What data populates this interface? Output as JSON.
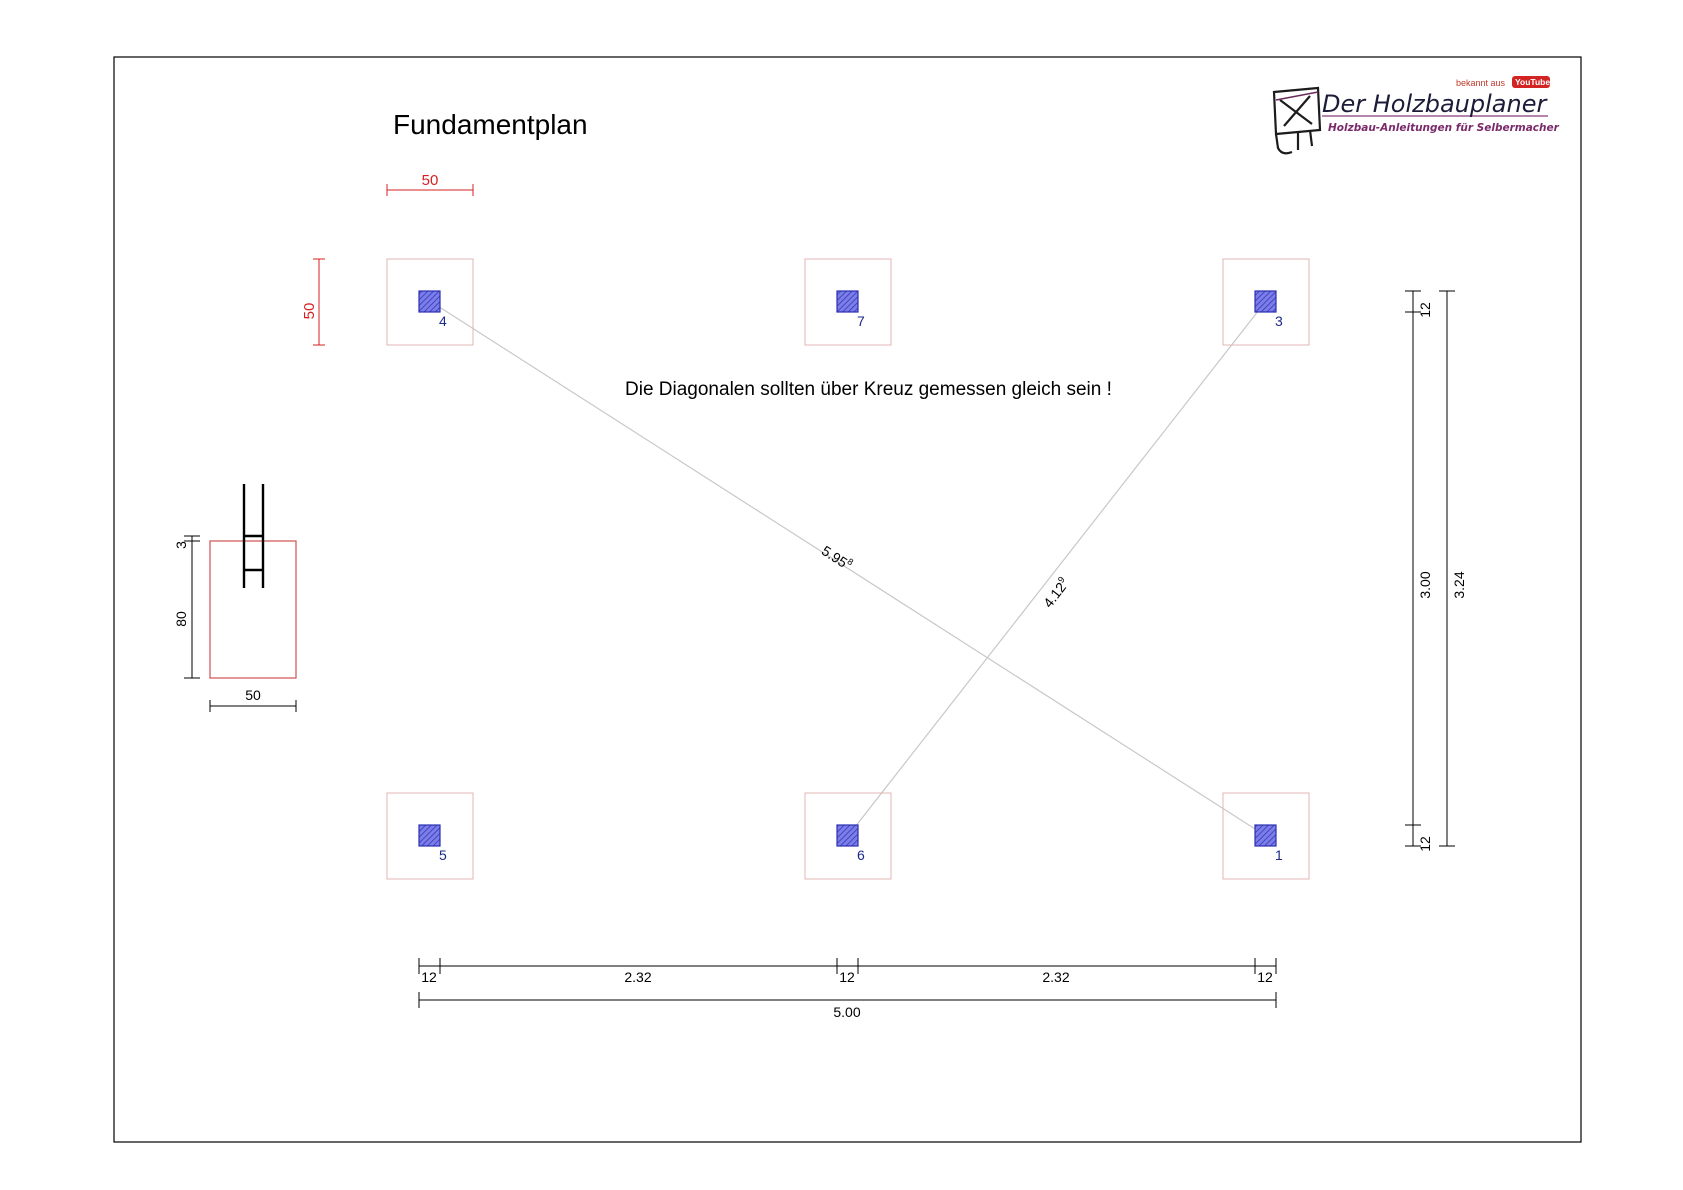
{
  "title": "Fundamentplan",
  "note": "Die Diagonalen sollten über Kreuz gemessen gleich sein !",
  "logo": {
    "badge": "bekannt aus",
    "youtube": "YouTube",
    "name": "Der Holzbauplaner",
    "tagline": "Holzbau-Anleitungen für Selbermacher"
  },
  "foundation": {
    "width_label": "50",
    "height_label": "50"
  },
  "points": [
    {
      "label": "4"
    },
    {
      "label": "7"
    },
    {
      "label": "3"
    },
    {
      "label": "5"
    },
    {
      "label": "6"
    },
    {
      "label": "1"
    }
  ],
  "diagonals": {
    "long": "5.95",
    "long_sup": "8",
    "short": "4.12",
    "short_sup": "9"
  },
  "section": {
    "depth": "80",
    "offset": "3",
    "width": "50"
  },
  "horizontal_dims": {
    "segments": [
      "12",
      "2.32",
      "12",
      "2.32",
      "12"
    ],
    "total": "5.00"
  },
  "vertical_dims": {
    "top": "12",
    "middle": "3.00",
    "bottom": "12",
    "total": "3.24"
  },
  "colors": {
    "post_fill": "#7b7de8",
    "post_stroke": "#2b2fb0",
    "foundation_stroke": "#e2b4b4",
    "diagonal": "#c8c8c8",
    "red_dim": "#d62020",
    "section_stroke": "#d05050"
  }
}
